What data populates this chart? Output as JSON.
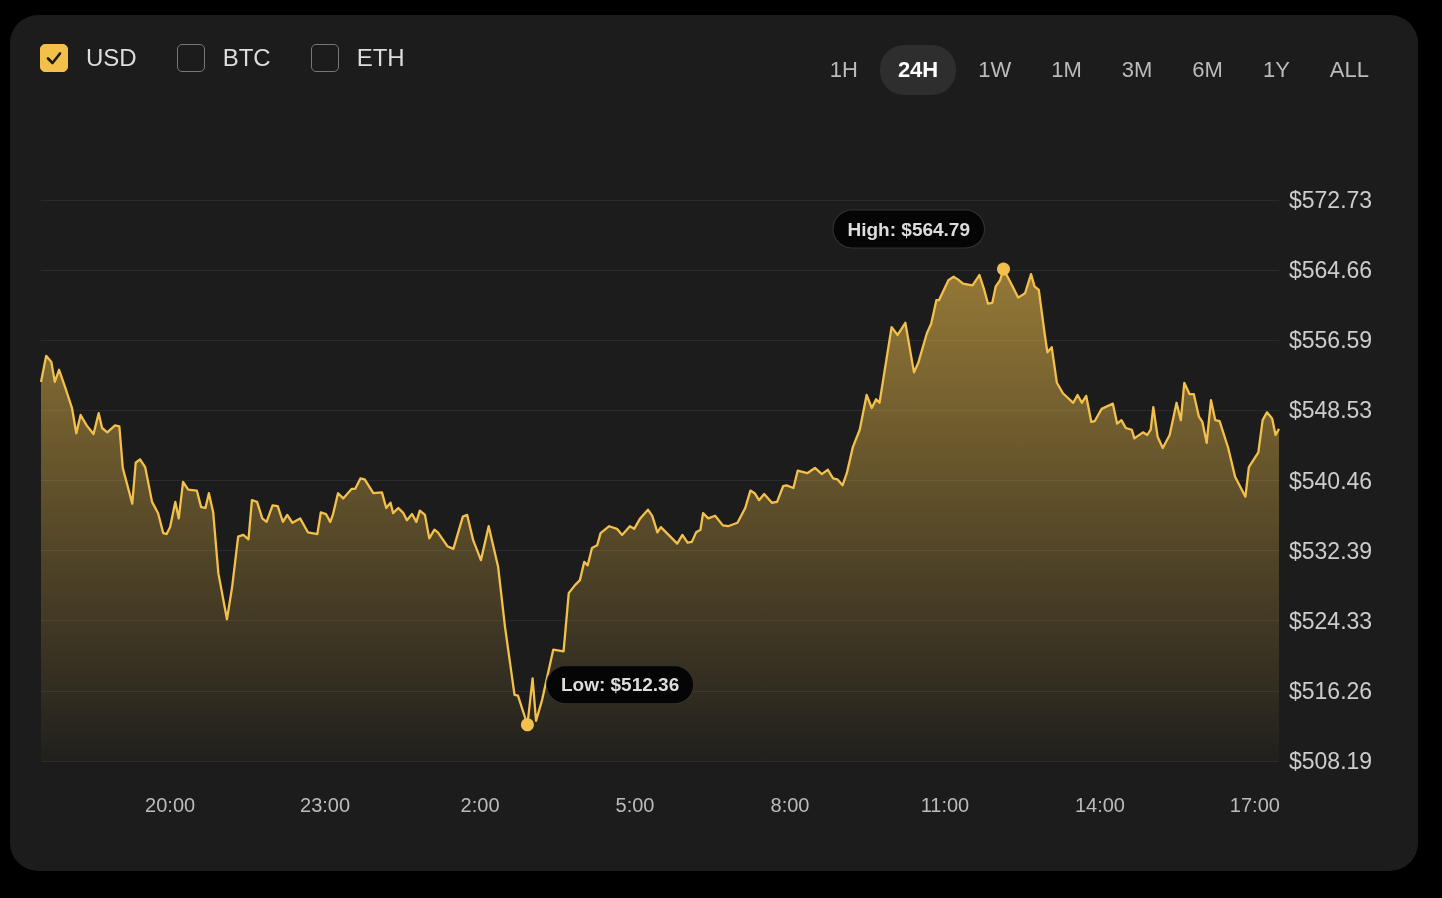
{
  "chart_data": {
    "type": "area",
    "color": "#f3c14b",
    "grid": "y",
    "annotations": [
      "USD",
      "BTC",
      "ETH",
      "1H",
      "24H",
      "1W",
      "1M",
      "3M",
      "6M",
      "1Y",
      "ALL",
      {
        "text": "High: $564.79",
        "x": "--01-02T12:08",
        "y": 564.79
      },
      {
        "text": "Low: $512.36",
        "x": "--01-02T02:55",
        "y": 512.36
      }
    ],
    "xlim": [
      "--01-01T17:30",
      "--01-02T17:28"
    ],
    "xticks": [
      {
        "value": "--01-01T20:00",
        "label": "20:00"
      },
      {
        "value": "--01-01T23:00",
        "label": "23:00"
      },
      {
        "value": "--01-02T02:00",
        "label": "2:00"
      },
      {
        "value": "--01-02T05:00",
        "label": "5:00"
      },
      {
        "value": "--01-02T08:00",
        "label": "8:00"
      },
      {
        "value": "--01-02T11:00",
        "label": "11:00"
      },
      {
        "value": "--01-02T14:00",
        "label": "14:00"
      },
      {
        "value": "--01-02T17:00",
        "label": "17:00"
      }
    ],
    "ylim": [
      508.19,
      572.73
    ],
    "yticks": [
      {
        "value": 508.19,
        "label": "$508.19"
      },
      {
        "value": 516.26,
        "label": "$516.26"
      },
      {
        "value": 524.33,
        "label": "$524.33"
      },
      {
        "value": 532.39,
        "label": "$532.39"
      },
      {
        "value": 540.46,
        "label": "$540.46"
      },
      {
        "value": 548.53,
        "label": "$548.53"
      },
      {
        "value": 556.59,
        "label": "$556.59"
      },
      {
        "value": 564.66,
        "label": "$564.66"
      },
      {
        "value": 572.73,
        "label": "$572.73"
      }
    ],
    "x": [
      "--01-01T17:30",
      "--01-01T17:36",
      "--01-01T17:42",
      "--01-01T17:46",
      "--01-01T17:51",
      "--01-01T17:58",
      "--01-01T18:06",
      "--01-01T18:11",
      "--01-01T18:16",
      "--01-01T18:23",
      "--01-01T18:31",
      "--01-01T18:37",
      "--01-01T18:41",
      "--01-01T18:47",
      "--01-01T18:56",
      "--01-01T19:01",
      "--01-01T19:05",
      "--01-01T19:16",
      "--01-01T19:20",
      "--01-01T19:25",
      "--01-01T19:31",
      "--01-01T19:39",
      "--01-01T19:46",
      "--01-01T19:52",
      "--01-01T19:56",
      "--01-01T20:00",
      "--01-01T20:06",
      "--01-01T20:10",
      "--01-01T20:15",
      "--01-01T20:21",
      "--01-01T20:31",
      "--01-01T20:36",
      "--01-01T20:41",
      "--01-01T20:45",
      "--01-01T20:50",
      "--01-01T20:56",
      "--01-01T21:06",
      "--01-01T21:12",
      "--01-01T21:19",
      "--01-01T21:25",
      "--01-01T21:31",
      "--01-01T21:35",
      "--01-01T21:41",
      "--01-01T21:47",
      "--01-01T21:52",
      "--01-01T21:59",
      "--01-01T22:05",
      "--01-01T22:11",
      "--01-01T22:16",
      "--01-01T22:22",
      "--01-01T22:31",
      "--01-01T22:40",
      "--01-01T22:51",
      "--01-01T22:55",
      "--01-01T23:01",
      "--01-01T23:06",
      "--01-01T23:09",
      "--01-01T23:15",
      "--01-01T23:21",
      "--01-01T23:31",
      "--01-01T23:35",
      "--01-01T23:41",
      "--01-01T23:46",
      "--01-01T23:56",
      "--01-02T00:06",
      "--01-02T00:11",
      "--01-02T00:16",
      "--01-02T00:19",
      "--01-02T00:25",
      "--01-02T00:31",
      "--01-02T00:35",
      "--01-02T00:41",
      "--01-02T00:46",
      "--01-02T00:50",
      "--01-02T00:56",
      "--01-02T01:01",
      "--01-02T01:07",
      "--01-02T01:11",
      "--01-02T01:22",
      "--01-02T01:29",
      "--01-02T01:40",
      "--01-02T01:45",
      "--01-02T01:52",
      "--01-02T02:01",
      "--01-02T02:10",
      "--01-02T02:21",
      "--01-02T02:29",
      "--01-02T02:40",
      "--01-02T02:44",
      "--01-02T02:55",
      "--01-02T03:01",
      "--01-02T03:05",
      "--01-02T03:12",
      "--01-02T03:25",
      "--01-02T03:37",
      "--01-02T03:43",
      "--01-02T03:50",
      "--01-02T03:56",
      "--01-02T04:01",
      "--01-02T04:05",
      "--01-02T04:10",
      "--01-02T04:16",
      "--01-02T04:20",
      "--01-02T04:30",
      "--01-02T04:39",
      "--01-02T04:45",
      "--01-02T04:54",
      "--01-02T04:59",
      "--01-02T05:06",
      "--01-02T05:15",
      "--01-02T05:20",
      "--01-02T05:26",
      "--01-02T05:30",
      "--01-02T05:41",
      "--01-02T05:49",
      "--01-02T05:55",
      "--01-02T06:01",
      "--01-02T06:06",
      "--01-02T06:11",
      "--01-02T06:16",
      "--01-02T06:19",
      "--01-02T06:25",
      "--01-02T06:33",
      "--01-02T06:42",
      "--01-02T06:48",
      "--01-02T06:59",
      "--01-02T07:08",
      "--01-02T07:14",
      "--01-02T07:19",
      "--01-02T07:24",
      "--01-02T07:30",
      "--01-02T07:39",
      "--01-02T07:45",
      "--01-02T07:52",
      "--01-02T07:56",
      "--01-02T08:04",
      "--01-02T08:09",
      "--01-02T08:20",
      "--01-02T08:29",
      "--01-02T08:37",
      "--01-02T08:44",
      "--01-02T08:50",
      "--01-02T08:55",
      "--01-02T09:01",
      "--01-02T09:06",
      "--01-02T09:13",
      "--01-02T09:21",
      "--01-02T09:29",
      "--01-02T09:35",
      "--01-02T09:40",
      "--01-02T09:44",
      "--01-02T09:58",
      "--01-02T10:05",
      "--01-02T10:14",
      "--01-02T10:24",
      "--01-02T10:29",
      "--01-02T10:39",
      "--01-02T10:44",
      "--01-02T10:50",
      "--01-02T10:53",
      "--01-02T11:04",
      "--01-02T11:10",
      "--01-02T11:15",
      "--01-02T11:21",
      "--01-02T11:32",
      "--01-02T11:40",
      "--01-02T11:45",
      "--01-02T11:50",
      "--01-02T11:55",
      "--01-02T11:59",
      "--01-02T12:04",
      "--01-02T12:08",
      "--01-02T12:18",
      "--01-02T12:25",
      "--01-02T12:33",
      "--01-02T12:40",
      "--01-02T12:44",
      "--01-02T12:49",
      "--01-02T12:56",
      "--01-02T12:59",
      "--01-02T13:04",
      "--01-02T13:10",
      "--01-02T13:17",
      "--01-02T13:29",
      "--01-02T13:34",
      "--01-02T13:39",
      "--01-02T13:44",
      "--01-02T13:50",
      "--01-02T13:54",
      "--01-02T14:02",
      "--01-02T14:15",
      "--01-02T14:20",
      "--01-02T14:25",
      "--01-02T14:30",
      "--01-02T14:37",
      "--01-02T14:40",
      "--01-02T14:50",
      "--01-02T14:55",
      "--01-02T14:59",
      "--01-02T15:02",
      "--01-02T15:07",
      "--01-02T15:13",
      "--01-02T15:21",
      "--01-02T15:29",
      "--01-02T15:34",
      "--01-02T15:38",
      "--01-02T15:44",
      "--01-02T15:49",
      "--01-02T15:55",
      "--01-02T15:59",
      "--01-02T16:04",
      "--01-02T16:09",
      "--01-02T16:14",
      "--01-02T16:19",
      "--01-02T16:29",
      "--01-02T16:37",
      "--01-02T16:49",
      "--01-02T16:53",
      "--01-02T17:04",
      "--01-02T17:09",
      "--01-02T17:14",
      "--01-02T17:20",
      "--01-02T17:24",
      "--01-02T17:28"
    ],
    "values": [
      551.8,
      554.8,
      554.1,
      551.8,
      553.2,
      551.2,
      548.8,
      545.9,
      548.0,
      546.8,
      545.8,
      548.2,
      546.5,
      546.0,
      546.8,
      546.7,
      541.9,
      537.8,
      542.5,
      542.9,
      542.0,
      538.0,
      536.7,
      534.4,
      534.3,
      535.1,
      538.0,
      536.1,
      540.3,
      539.4,
      539.3,
      537.4,
      537.3,
      539.0,
      536.8,
      529.8,
      524.5,
      528.2,
      534.0,
      534.2,
      533.7,
      538.2,
      538.0,
      536.1,
      535.7,
      537.6,
      537.5,
      535.7,
      536.5,
      535.6,
      536.1,
      534.5,
      534.3,
      536.8,
      536.6,
      535.7,
      536.5,
      539.0,
      538.4,
      539.5,
      539.5,
      540.7,
      540.6,
      539.0,
      539.1,
      537.3,
      537.9,
      536.7,
      537.3,
      536.7,
      535.9,
      536.6,
      535.7,
      537.0,
      536.5,
      533.8,
      534.8,
      534.5,
      532.9,
      532.6,
      536.3,
      536.5,
      533.6,
      531.3,
      535.2,
      530.5,
      523.6,
      515.8,
      515.7,
      512.36,
      517.7,
      512.8,
      515.2,
      521.0,
      520.8,
      527.5,
      528.4,
      529.0,
      531.1,
      530.7,
      532.7,
      533.0,
      534.4,
      535.2,
      534.9,
      534.2,
      535.2,
      534.9,
      536.1,
      537.1,
      536.4,
      534.5,
      535.1,
      534.0,
      533.2,
      534.2,
      533.3,
      533.4,
      534.5,
      534.8,
      536.7,
      536.1,
      536.4,
      535.3,
      535.2,
      535.6,
      537.3,
      539.3,
      539.0,
      538.2,
      538.9,
      537.9,
      538.0,
      539.8,
      539.9,
      539.6,
      541.6,
      541.3,
      541.9,
      541.2,
      541.7,
      540.7,
      540.6,
      539.9,
      541.3,
      544.3,
      546.3,
      550.3,
      548.8,
      549.8,
      549.4,
      558.1,
      557.2,
      558.6,
      552.9,
      554.0,
      557.4,
      558.5,
      561.2,
      561.2,
      563.5,
      563.9,
      563.6,
      563.1,
      562.9,
      564.1,
      562.6,
      560.8,
      560.9,
      562.8,
      563.5,
      564.79,
      562.9,
      561.5,
      562.0,
      564.2,
      562.8,
      562.4,
      557.2,
      555.2,
      555.8,
      551.7,
      550.5,
      549.4,
      550.3,
      549.4,
      550.2,
      547.2,
      547.3,
      548.7,
      549.3,
      547.0,
      547.4,
      546.5,
      546.3,
      545.3,
      546.0,
      545.7,
      546.3,
      548.9,
      545.5,
      544.2,
      545.7,
      549.4,
      547.4,
      551.7,
      550.4,
      550.4,
      547.8,
      547.2,
      544.8,
      549.7,
      547.4,
      547.3,
      544.2,
      540.9,
      538.6,
      542.0,
      543.7,
      547.4,
      548.3,
      547.6,
      545.7,
      546.4
    ]
  }
}
